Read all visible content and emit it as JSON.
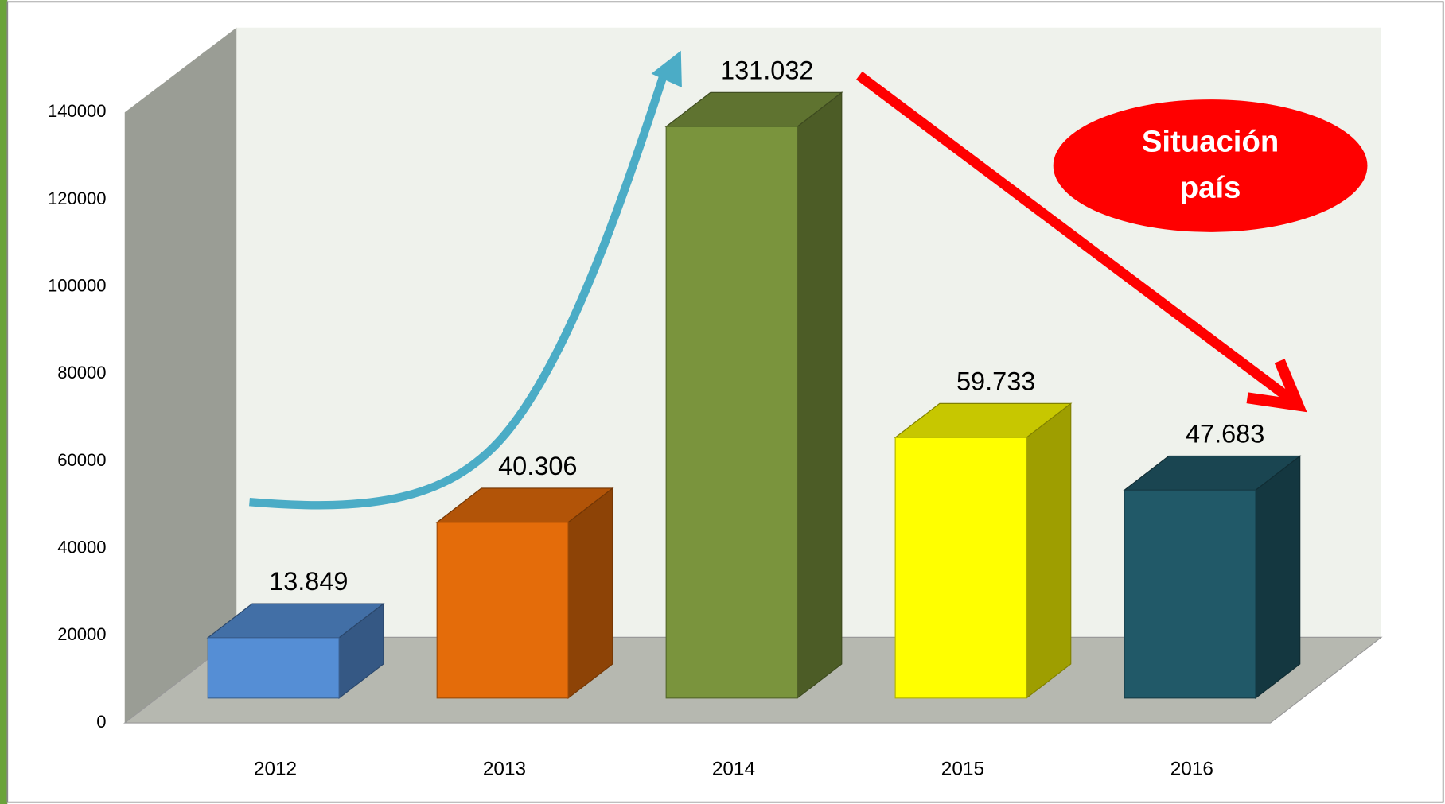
{
  "chart_data": {
    "type": "bar3d",
    "categories": [
      "2012",
      "2013",
      "2014",
      "2015",
      "2016"
    ],
    "values": [
      13849,
      40306,
      131032,
      59733,
      47683
    ],
    "value_labels": [
      "13.849",
      "40.306",
      "131.032",
      "59.733",
      "47.683"
    ],
    "colors": [
      "#558ed5",
      "#e46c0a",
      "#7a943d",
      "#ffff00",
      "#215968"
    ],
    "ylim": [
      0,
      140000
    ],
    "yticks": [
      0,
      20000,
      40000,
      60000,
      80000,
      100000,
      120000,
      140000
    ],
    "grid": false,
    "annotation": [
      "Situación",
      "país"
    ]
  }
}
